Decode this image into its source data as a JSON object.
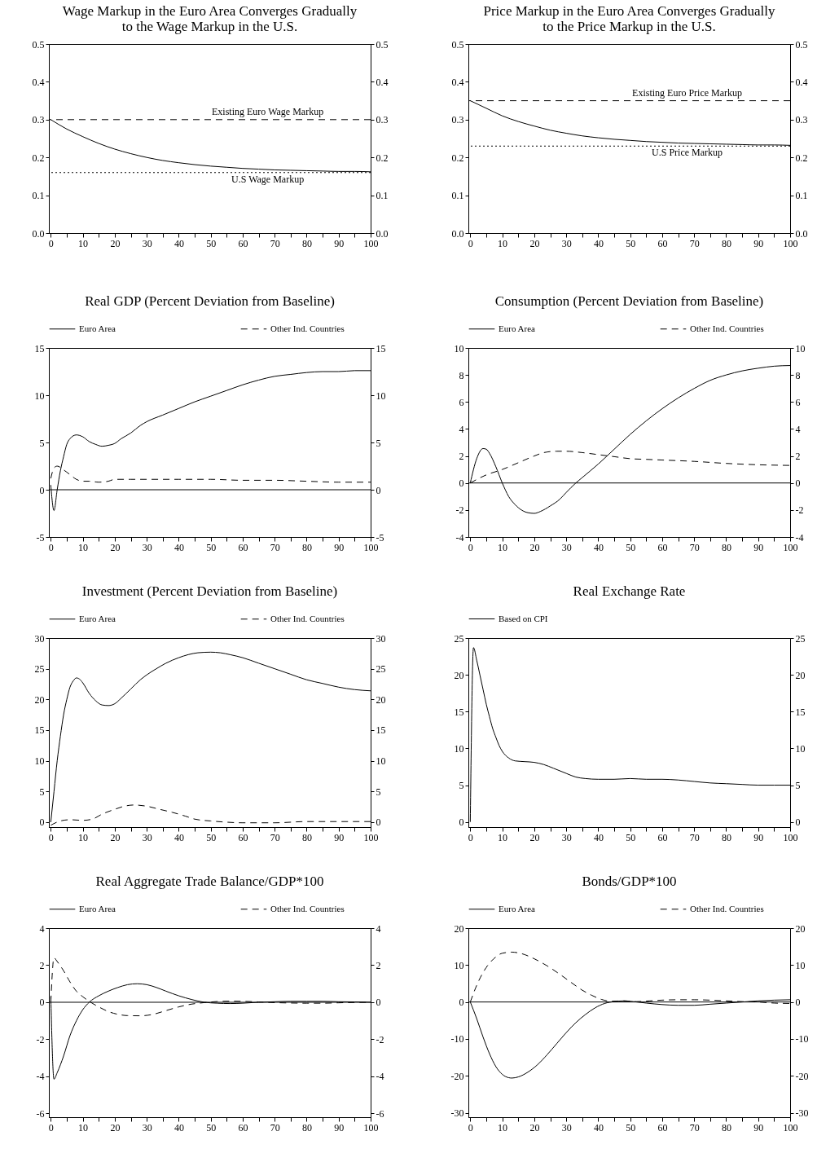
{
  "chart_data": [
    {
      "type": "line",
      "title": "Wage Markup in the Euro Area Converges Gradually to the Wage Markup in the U.S.",
      "xlim": [
        -0.6,
        100
      ],
      "xticks": [
        0,
        {
          "value": 5,
          "label": null
        },
        10,
        {
          "value": 15,
          "label": null
        },
        20,
        {
          "value": 25,
          "label": null
        },
        30,
        {
          "value": 35,
          "label": null
        },
        40,
        {
          "value": 45,
          "label": null
        },
        50,
        {
          "value": 55,
          "label": null
        },
        60,
        {
          "value": 65,
          "label": null
        },
        70,
        {
          "value": 75,
          "label": null
        },
        80,
        {
          "value": 85,
          "label": null
        },
        90,
        {
          "value": 95,
          "label": null
        },
        100
      ],
      "ylim": [
        0,
        0.5
      ],
      "yticks": [
        {
          "value": 0,
          "label": "0.0"
        },
        0.1,
        0.2,
        0.3,
        0.4,
        0.5
      ],
      "y2lim": [
        0,
        0.5
      ],
      "y2ticks": [
        {
          "value": 0,
          "label": "0.0"
        },
        0.1,
        0.2,
        0.3,
        0.4,
        0.5
      ],
      "series": [
        {
          "color": "#000000",
          "line_style": "solid",
          "x": [
            0,
            5,
            10,
            15,
            20,
            25,
            30,
            35,
            40,
            45,
            50,
            55,
            60,
            65,
            70,
            75,
            80,
            85,
            90,
            95,
            100
          ],
          "values": [
            0.3,
            0.275,
            0.255,
            0.237,
            0.222,
            0.21,
            0.2,
            0.192,
            0.186,
            0.181,
            0.177,
            0.174,
            0.171,
            0.169,
            0.167,
            0.166,
            0.165,
            0.164,
            0.163,
            0.163,
            0.162
          ]
        }
      ],
      "ref_lines": [
        {
          "axis": "y",
          "value": 0.3,
          "label": "Existing Euro Wage Markup",
          "line_style": "dashed",
          "color": "#000000"
        },
        {
          "axis": "y",
          "value": 0.16,
          "label": "U.S Wage Markup",
          "line_style": "dotted",
          "color": "#000000"
        }
      ]
    },
    {
      "type": "line",
      "title": "Price Markup in the Euro Area Converges Gradually to the Price Markup in the U.S.",
      "xlim": [
        -0.6,
        100
      ],
      "xticks": [
        0,
        {
          "value": 5,
          "label": null
        },
        10,
        {
          "value": 15,
          "label": null
        },
        20,
        {
          "value": 25,
          "label": null
        },
        30,
        {
          "value": 35,
          "label": null
        },
        40,
        {
          "value": 45,
          "label": null
        },
        50,
        {
          "value": 55,
          "label": null
        },
        60,
        {
          "value": 65,
          "label": null
        },
        70,
        {
          "value": 75,
          "label": null
        },
        80,
        {
          "value": 85,
          "label": null
        },
        90,
        {
          "value": 95,
          "label": null
        },
        100
      ],
      "ylim": [
        0,
        0.5
      ],
      "yticks": [
        {
          "value": 0,
          "label": "0.0"
        },
        0.1,
        0.2,
        0.3,
        0.4,
        0.5
      ],
      "y2lim": [
        0,
        0.5
      ],
      "y2ticks": [
        {
          "value": 0,
          "label": "0.0"
        },
        0.1,
        0.2,
        0.3,
        0.4,
        0.5
      ],
      "series": [
        {
          "color": "#000000",
          "line_style": "solid",
          "x": [
            0,
            5,
            10,
            15,
            20,
            25,
            30,
            35,
            40,
            45,
            50,
            55,
            60,
            65,
            70,
            75,
            80,
            85,
            90,
            95,
            100
          ],
          "values": [
            0.35,
            0.33,
            0.31,
            0.295,
            0.283,
            0.272,
            0.264,
            0.257,
            0.252,
            0.248,
            0.245,
            0.242,
            0.24,
            0.238,
            0.237,
            0.236,
            0.235,
            0.234,
            0.233,
            0.233,
            0.232
          ]
        }
      ],
      "ref_lines": [
        {
          "axis": "y",
          "value": 0.35,
          "label": "Existing Euro Price Markup",
          "line_style": "dashed",
          "color": "#000000"
        },
        {
          "axis": "y",
          "value": 0.23,
          "label": "U.S Price Markup",
          "line_style": "dotted",
          "color": "#000000"
        }
      ]
    },
    {
      "type": "line",
      "title": "Real GDP (Percent Deviation from Baseline)",
      "legend": "top",
      "xlim": [
        -0.6,
        100
      ],
      "xticks": [
        0,
        {
          "value": 5,
          "label": null
        },
        10,
        {
          "value": 15,
          "label": null
        },
        20,
        {
          "value": 25,
          "label": null
        },
        30,
        {
          "value": 35,
          "label": null
        },
        40,
        {
          "value": 45,
          "label": null
        },
        50,
        {
          "value": 55,
          "label": null
        },
        60,
        {
          "value": 65,
          "label": null
        },
        70,
        {
          "value": 75,
          "label": null
        },
        80,
        {
          "value": 85,
          "label": null
        },
        90,
        {
          "value": 95,
          "label": null
        },
        100
      ],
      "ylim": [
        -5,
        15
      ],
      "yticks": [
        -5,
        0,
        5,
        10,
        15
      ],
      "y2lim": [
        -5,
        15
      ],
      "y2ticks": [
        -5,
        0,
        5,
        10,
        15
      ],
      "series": [
        {
          "name": "Euro Area",
          "color": "#000000",
          "line_style": "solid",
          "x": [
            0,
            1,
            2,
            3,
            4,
            5,
            6,
            8,
            10,
            12,
            14,
            16,
            18,
            20,
            22,
            25,
            28,
            30,
            35,
            40,
            45,
            50,
            55,
            60,
            65,
            70,
            75,
            80,
            85,
            90,
            95,
            100
          ],
          "values": [
            0.5,
            -2.2,
            0,
            2,
            3.5,
            4.8,
            5.4,
            5.8,
            5.6,
            5.1,
            4.8,
            4.6,
            4.7,
            4.9,
            5.4,
            6.0,
            6.8,
            7.2,
            7.9,
            8.6,
            9.3,
            9.9,
            10.5,
            11.1,
            11.6,
            12.0,
            12.2,
            12.4,
            12.5,
            12.5,
            12.6,
            12.6
          ]
        },
        {
          "name": "Other Ind. Countries",
          "color": "#000000",
          "line_style": "dashed",
          "x": [
            0,
            1,
            2,
            4,
            6,
            8,
            10,
            12,
            15,
            18,
            20,
            25,
            30,
            40,
            50,
            60,
            70,
            80,
            90,
            95,
            100
          ],
          "values": [
            1.2,
            2.3,
            2.5,
            2.1,
            1.6,
            1.1,
            0.9,
            0.9,
            0.8,
            0.9,
            1.1,
            1.1,
            1.1,
            1.1,
            1.1,
            1.0,
            1.0,
            0.9,
            0.8,
            0.8,
            0.8
          ]
        }
      ],
      "ref_lines": [
        {
          "axis": "y",
          "value": 0,
          "line_style": "solid",
          "color": "#000000"
        }
      ]
    },
    {
      "type": "line",
      "title": "Consumption (Percent Deviation from Baseline)",
      "legend": "top",
      "xlim": [
        -0.6,
        100
      ],
      "xticks": [
        0,
        {
          "value": 5,
          "label": null
        },
        10,
        {
          "value": 15,
          "label": null
        },
        20,
        {
          "value": 25,
          "label": null
        },
        30,
        {
          "value": 35,
          "label": null
        },
        40,
        {
          "value": 45,
          "label": null
        },
        50,
        {
          "value": 55,
          "label": null
        },
        60,
        {
          "value": 65,
          "label": null
        },
        70,
        {
          "value": 75,
          "label": null
        },
        80,
        {
          "value": 85,
          "label": null
        },
        90,
        {
          "value": 95,
          "label": null
        },
        100
      ],
      "ylim": [
        -4,
        10
      ],
      "yticks": [
        -4,
        -2,
        0,
        2,
        4,
        6,
        8,
        10
      ],
      "y2lim": [
        -4,
        10
      ],
      "y2ticks": [
        -4,
        -2,
        0,
        2,
        4,
        6,
        8,
        10
      ],
      "series": [
        {
          "name": "Euro Area",
          "color": "#000000",
          "line_style": "solid",
          "x": [
            0,
            2,
            4,
            5,
            6,
            8,
            10,
            12,
            14,
            16,
            18,
            20,
            22,
            25,
            28,
            30,
            33,
            35,
            40,
            45,
            50,
            55,
            60,
            65,
            70,
            75,
            80,
            85,
            90,
            95,
            100
          ],
          "values": [
            0,
            1.8,
            2.55,
            2.5,
            2.2,
            1.2,
            0,
            -1,
            -1.6,
            -2.0,
            -2.2,
            -2.25,
            -2.1,
            -1.7,
            -1.2,
            -0.7,
            0,
            0.4,
            1.4,
            2.5,
            3.6,
            4.6,
            5.5,
            6.3,
            7.0,
            7.6,
            8.0,
            8.3,
            8.5,
            8.65,
            8.7
          ]
        },
        {
          "name": "Other Ind. Countries",
          "color": "#000000",
          "line_style": "dashed",
          "x": [
            0,
            5,
            10,
            15,
            20,
            23,
            27,
            30,
            35,
            40,
            45,
            50,
            55,
            60,
            70,
            80,
            90,
            100
          ],
          "values": [
            0,
            0.6,
            1.0,
            1.5,
            2.0,
            2.25,
            2.35,
            2.35,
            2.25,
            2.1,
            1.95,
            1.8,
            1.75,
            1.7,
            1.6,
            1.45,
            1.35,
            1.3
          ]
        }
      ],
      "ref_lines": [
        {
          "axis": "y",
          "value": 0,
          "line_style": "solid",
          "color": "#000000"
        }
      ]
    },
    {
      "type": "line",
      "title": "Investment (Percent Deviation from Baseline)",
      "legend": "top",
      "xlim": [
        -0.6,
        100
      ],
      "xticks": [
        0,
        {
          "value": 5,
          "label": null
        },
        10,
        {
          "value": 15,
          "label": null
        },
        20,
        {
          "value": 25,
          "label": null
        },
        30,
        {
          "value": 35,
          "label": null
        },
        40,
        {
          "value": 45,
          "label": null
        },
        50,
        {
          "value": 55,
          "label": null
        },
        60,
        {
          "value": 65,
          "label": null
        },
        70,
        {
          "value": 75,
          "label": null
        },
        80,
        {
          "value": 85,
          "label": null
        },
        90,
        {
          "value": 95,
          "label": null
        },
        100
      ],
      "ylim": [
        -0.8,
        30
      ],
      "yticks": [
        0,
        5,
        10,
        15,
        20,
        25,
        30
      ],
      "y2lim": [
        -0.8,
        30
      ],
      "y2ticks": [
        0,
        5,
        10,
        15,
        20,
        25,
        30
      ],
      "series": [
        {
          "name": "Euro Area",
          "color": "#000000",
          "line_style": "solid",
          "x": [
            0,
            1,
            2,
            3,
            4,
            5,
            6,
            7,
            8,
            9,
            10,
            12,
            14,
            16,
            18,
            20,
            22,
            25,
            28,
            30,
            33,
            36,
            40,
            43,
            46,
            50,
            53,
            56,
            60,
            65,
            70,
            75,
            80,
            85,
            90,
            95,
            100
          ],
          "values": [
            0,
            5,
            10,
            14,
            17.5,
            20,
            22,
            23,
            23.5,
            23.3,
            22.7,
            21,
            19.8,
            19.1,
            19.0,
            19.3,
            20.2,
            21.7,
            23.2,
            24.0,
            25.0,
            25.9,
            26.8,
            27.3,
            27.6,
            27.7,
            27.6,
            27.3,
            26.8,
            25.9,
            25.0,
            24.1,
            23.2,
            22.6,
            22.0,
            21.6,
            21.4
          ]
        },
        {
          "name": "Other Ind. Countries",
          "color": "#000000",
          "line_style": "dashed",
          "x": [
            0,
            3,
            6,
            10,
            13,
            16,
            20,
            23,
            26,
            30,
            34,
            38,
            42,
            45,
            50,
            55,
            60,
            70,
            80,
            90,
            100
          ],
          "values": [
            -0.5,
            0.2,
            0.4,
            0.3,
            0.5,
            1.3,
            2.1,
            2.6,
            2.8,
            2.6,
            2.1,
            1.6,
            1.0,
            0.5,
            0.2,
            0.0,
            -0.1,
            -0.1,
            0.1,
            0.1,
            0.1
          ]
        }
      ]
    },
    {
      "type": "line",
      "title": "Real Exchange Rate",
      "legend": "top",
      "xlim": [
        -0.6,
        100
      ],
      "xticks": [
        0,
        {
          "value": 5,
          "label": null
        },
        10,
        {
          "value": 15,
          "label": null
        },
        20,
        {
          "value": 25,
          "label": null
        },
        30,
        {
          "value": 35,
          "label": null
        },
        40,
        {
          "value": 45,
          "label": null
        },
        50,
        {
          "value": 55,
          "label": null
        },
        60,
        {
          "value": 65,
          "label": null
        },
        70,
        {
          "value": 75,
          "label": null
        },
        80,
        {
          "value": 85,
          "label": null
        },
        90,
        {
          "value": 95,
          "label": null
        },
        100
      ],
      "ylim": [
        -0.7,
        25
      ],
      "yticks": [
        0,
        5,
        10,
        15,
        20,
        25
      ],
      "y2lim": [
        -0.7,
        25
      ],
      "y2ticks": [
        0,
        5,
        10,
        15,
        20,
        25
      ],
      "series": [
        {
          "name": "Based on CPI",
          "color": "#000000",
          "line_style": "solid",
          "x": [
            0,
            1,
            2,
            3,
            4,
            5,
            6,
            7,
            8,
            9,
            10,
            12,
            14,
            17,
            20,
            23,
            26,
            30,
            33,
            36,
            40,
            45,
            50,
            55,
            60,
            65,
            70,
            75,
            80,
            85,
            90,
            95,
            100
          ],
          "values": [
            0,
            23.7,
            22,
            20,
            18,
            16,
            14.3,
            12.7,
            11.5,
            10.4,
            9.6,
            8.7,
            8.3,
            8.2,
            8.1,
            7.8,
            7.3,
            6.6,
            6.1,
            5.9,
            5.8,
            5.8,
            5.9,
            5.8,
            5.8,
            5.7,
            5.5,
            5.3,
            5.2,
            5.1,
            5.0,
            5.0,
            5.0
          ]
        }
      ]
    },
    {
      "type": "line",
      "title": "Real Aggregate Trade Balance/GDP*100",
      "legend": "top",
      "xlim": [
        -0.6,
        100
      ],
      "xticks": [
        0,
        {
          "value": 5,
          "label": null
        },
        10,
        {
          "value": 15,
          "label": null
        },
        20,
        {
          "value": 25,
          "label": null
        },
        30,
        {
          "value": 35,
          "label": null
        },
        40,
        {
          "value": 45,
          "label": null
        },
        50,
        {
          "value": 55,
          "label": null
        },
        60,
        {
          "value": 65,
          "label": null
        },
        70,
        {
          "value": 75,
          "label": null
        },
        80,
        {
          "value": 85,
          "label": null
        },
        90,
        {
          "value": 95,
          "label": null
        },
        100
      ],
      "ylim": [
        -6.2,
        4
      ],
      "yticks": [
        -6,
        -4,
        -2,
        0,
        2,
        4
      ],
      "y2lim": [
        -6.2,
        4
      ],
      "y2ticks": [
        -6,
        -4,
        -2,
        0,
        2,
        4
      ],
      "series": [
        {
          "name": "Euro Area",
          "color": "#000000",
          "line_style": "solid",
          "x": [
            0,
            1,
            2,
            4,
            6,
            8,
            10,
            12,
            15,
            18,
            21,
            24,
            27,
            30,
            33,
            36,
            40,
            44,
            48,
            52,
            56,
            60,
            65,
            70,
            75,
            80,
            85,
            90,
            95,
            100
          ],
          "values": [
            0.3,
            -4.15,
            -3.8,
            -2.9,
            -1.8,
            -1.0,
            -0.4,
            0,
            0.35,
            0.6,
            0.8,
            0.95,
            1.0,
            0.95,
            0.8,
            0.6,
            0.35,
            0.15,
            0.0,
            -0.05,
            -0.07,
            -0.05,
            0,
            0.03,
            0.05,
            0.05,
            0.05,
            0.03,
            0.02,
            0
          ]
        },
        {
          "name": "Other Ind. Countries",
          "color": "#000000",
          "line_style": "dashed",
          "x": [
            0,
            1,
            2,
            4,
            6,
            8,
            10,
            12,
            15,
            18,
            21,
            24,
            28,
            32,
            36,
            40,
            44,
            48,
            52,
            56,
            60,
            65,
            70,
            75,
            80,
            85,
            90,
            95,
            100
          ],
          "values": [
            0,
            2.4,
            2.2,
            1.7,
            1.1,
            0.6,
            0.3,
            0.05,
            -0.25,
            -0.5,
            -0.65,
            -0.72,
            -0.73,
            -0.65,
            -0.45,
            -0.25,
            -0.1,
            -0.02,
            0.04,
            0.06,
            0.05,
            0.02,
            -0.02,
            -0.04,
            -0.05,
            -0.05,
            -0.03,
            -0.01,
            0
          ]
        }
      ],
      "ref_lines": [
        {
          "axis": "y",
          "value": 0,
          "line_style": "solid",
          "color": "#000000"
        }
      ]
    },
    {
      "type": "line",
      "title": "Bonds/GDP*100",
      "legend": "top",
      "xlim": [
        -0.6,
        100
      ],
      "xticks": [
        0,
        {
          "value": 5,
          "label": null
        },
        10,
        {
          "value": 15,
          "label": null
        },
        20,
        {
          "value": 25,
          "label": null
        },
        30,
        {
          "value": 35,
          "label": null
        },
        40,
        {
          "value": 45,
          "label": null
        },
        50,
        {
          "value": 55,
          "label": null
        },
        60,
        {
          "value": 65,
          "label": null
        },
        70,
        {
          "value": 75,
          "label": null
        },
        80,
        {
          "value": 85,
          "label": null
        },
        90,
        {
          "value": 95,
          "label": null
        },
        100
      ],
      "ylim": [
        -31.2,
        20
      ],
      "yticks": [
        -30,
        -20,
        -10,
        0,
        10,
        20
      ],
      "y2lim": [
        -31.2,
        20
      ],
      "y2ticks": [
        -30,
        -20,
        -10,
        0,
        10,
        20
      ],
      "series": [
        {
          "name": "Euro Area",
          "color": "#000000",
          "line_style": "solid",
          "x": [
            0,
            2,
            4,
            6,
            8,
            10,
            12,
            13,
            15,
            18,
            21,
            24,
            27,
            30,
            33,
            36,
            39,
            42,
            45,
            48,
            51,
            55,
            60,
            65,
            70,
            75,
            80,
            85,
            90,
            95,
            100
          ],
          "values": [
            0,
            -4.5,
            -9.5,
            -14,
            -17.5,
            -19.6,
            -20.5,
            -20.6,
            -20.3,
            -19,
            -17,
            -14.3,
            -11.3,
            -8.3,
            -5.6,
            -3.4,
            -1.6,
            -0.4,
            0.1,
            0.3,
            0.1,
            -0.3,
            -0.7,
            -0.9,
            -0.9,
            -0.6,
            -0.3,
            0,
            0.3,
            0.5,
            0.6
          ]
        },
        {
          "name": "Other Ind. Countries",
          "color": "#000000",
          "line_style": "dashed",
          "x": [
            0,
            2,
            4,
            6,
            8,
            10,
            13,
            16,
            20,
            24,
            28,
            32,
            35,
            38,
            41,
            44,
            48,
            52,
            56,
            60,
            65,
            70,
            75,
            80,
            85,
            90,
            95,
            100
          ],
          "values": [
            0,
            4.5,
            8,
            10.5,
            12.2,
            13.2,
            13.5,
            13.1,
            11.7,
            9.8,
            7.5,
            5.0,
            3.2,
            1.8,
            0.7,
            0.2,
            0.3,
            0.1,
            0.3,
            0.5,
            0.6,
            0.6,
            0.5,
            0.3,
            0.1,
            0,
            -0.3,
            -0.4
          ]
        }
      ],
      "ref_lines": [
        {
          "axis": "y",
          "value": 0,
          "line_style": "solid",
          "color": "#000000"
        }
      ]
    }
  ]
}
